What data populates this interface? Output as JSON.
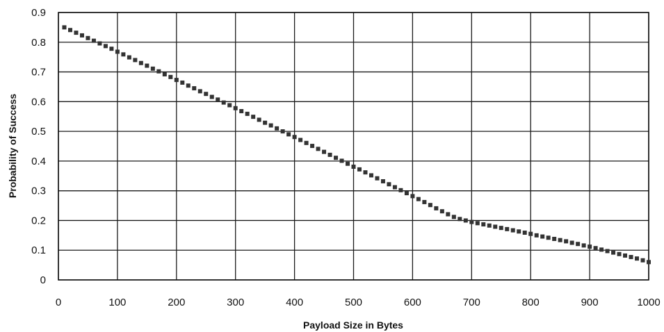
{
  "chart_data": {
    "type": "scatter",
    "title": "",
    "xlabel": "Payload Size in Bytes",
    "ylabel": "Probability of Success",
    "xlim": [
      0,
      1000
    ],
    "ylim": [
      0,
      0.9
    ],
    "x_ticks": [
      "0",
      "100",
      "200",
      "300",
      "400",
      "500",
      "600",
      "700",
      "800",
      "900",
      "1000"
    ],
    "y_ticks": [
      "0",
      "0.1",
      "0.2",
      "0.3",
      "0.4",
      "0.5",
      "0.6",
      "0.7",
      "0.8",
      "0.9"
    ],
    "grid": true,
    "legend": "none",
    "marker_color": "#333333",
    "series": [
      {
        "x": [
          10,
          20,
          30,
          40,
          50,
          60,
          70,
          80,
          90,
          100,
          110,
          120,
          130,
          140,
          150,
          160,
          170,
          180,
          190,
          200,
          210,
          220,
          230,
          240,
          250,
          260,
          270,
          280,
          290,
          300,
          310,
          320,
          330,
          340,
          350,
          360,
          370,
          380,
          390,
          400,
          410,
          420,
          430,
          440,
          450,
          460,
          470,
          480,
          490,
          500,
          510,
          520,
          530,
          540,
          550,
          560,
          570,
          580,
          590,
          600,
          610,
          620,
          630,
          640,
          650,
          660,
          670,
          680,
          690,
          700,
          710,
          720,
          730,
          740,
          750,
          760,
          770,
          780,
          790,
          800,
          810,
          820,
          830,
          840,
          850,
          860,
          870,
          880,
          890,
          900,
          910,
          920,
          930,
          940,
          950,
          960,
          970,
          980,
          990,
          1000
        ],
        "y": [
          0.85,
          0.841,
          0.832,
          0.823,
          0.814,
          0.805,
          0.796,
          0.787,
          0.778,
          0.768,
          0.759,
          0.749,
          0.74,
          0.73,
          0.721,
          0.711,
          0.702,
          0.692,
          0.683,
          0.673,
          0.664,
          0.654,
          0.645,
          0.635,
          0.626,
          0.616,
          0.607,
          0.597,
          0.588,
          0.578,
          0.568,
          0.559,
          0.549,
          0.539,
          0.529,
          0.52,
          0.51,
          0.5,
          0.49,
          0.481,
          0.471,
          0.461,
          0.451,
          0.441,
          0.431,
          0.421,
          0.411,
          0.401,
          0.391,
          0.381,
          0.372,
          0.362,
          0.352,
          0.342,
          0.332,
          0.322,
          0.312,
          0.302,
          0.292,
          0.282,
          0.272,
          0.262,
          0.252,
          0.241,
          0.231,
          0.221,
          0.212,
          0.205,
          0.2,
          0.195,
          0.191,
          0.187,
          0.183,
          0.179,
          0.175,
          0.171,
          0.167,
          0.163,
          0.159,
          0.155,
          0.15,
          0.146,
          0.142,
          0.138,
          0.134,
          0.13,
          0.125,
          0.121,
          0.116,
          0.112,
          0.107,
          0.102,
          0.097,
          0.092,
          0.087,
          0.082,
          0.077,
          0.072,
          0.066,
          0.06
        ]
      }
    ]
  }
}
